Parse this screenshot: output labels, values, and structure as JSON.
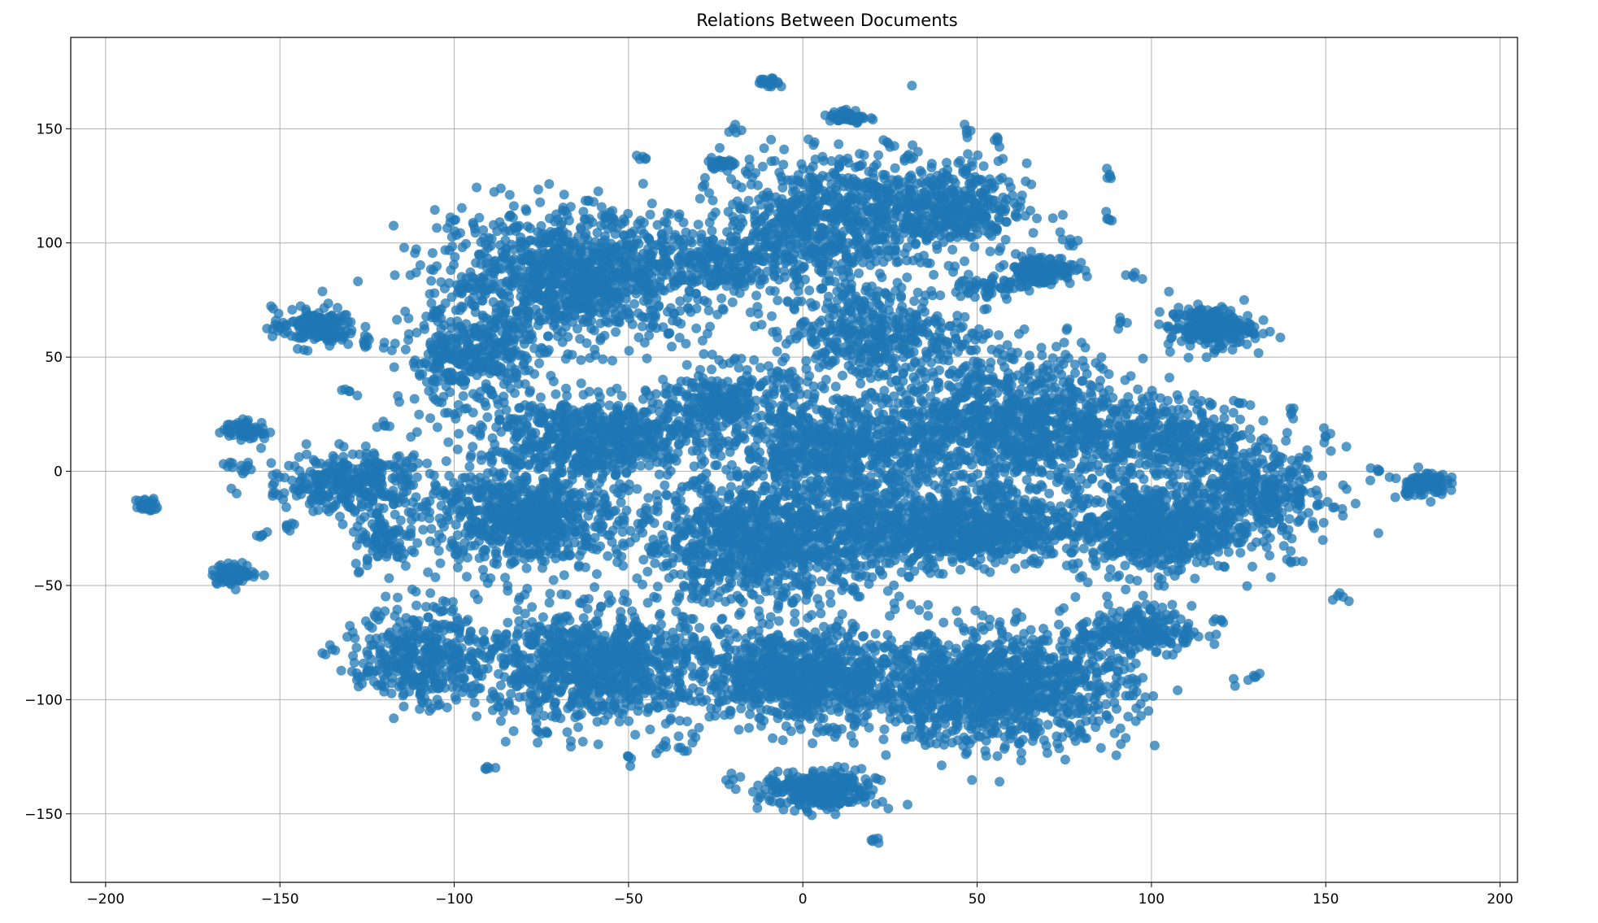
{
  "chart_data": {
    "type": "scatter",
    "title": "Relations Between Documents",
    "xlabel": "",
    "ylabel": "",
    "xlim": [
      -210,
      205
    ],
    "ylim": [
      -180,
      190
    ],
    "x_ticks": [
      -200,
      -150,
      -100,
      -50,
      0,
      50,
      100,
      150,
      200
    ],
    "y_ticks": [
      -150,
      -100,
      -50,
      0,
      50,
      100,
      150
    ],
    "x_tick_labels": [
      "−200",
      "−150",
      "−100",
      "−50",
      "0",
      "50",
      "100",
      "150",
      "200"
    ],
    "y_tick_labels": [
      "−150",
      "−100",
      "−50",
      "0",
      "50",
      "100",
      "150"
    ],
    "grid": true,
    "point_color": "#1f77b4",
    "point_alpha": 0.75,
    "series": [
      {
        "clusters": [
          {
            "cx": -65,
            "cy": 85,
            "rx": 35,
            "ry": 25,
            "n": 1100
          },
          {
            "cx": -95,
            "cy": 50,
            "rx": 18,
            "ry": 18,
            "n": 350
          },
          {
            "cx": -60,
            "cy": 15,
            "rx": 30,
            "ry": 15,
            "n": 650
          },
          {
            "cx": -22,
            "cy": 30,
            "rx": 18,
            "ry": 15,
            "n": 300
          },
          {
            "cx": 5,
            "cy": 110,
            "rx": 25,
            "ry": 25,
            "n": 650
          },
          {
            "cx": 40,
            "cy": 115,
            "rx": 22,
            "ry": 18,
            "n": 450
          },
          {
            "cx": 20,
            "cy": 60,
            "rx": 25,
            "ry": 20,
            "n": 420
          },
          {
            "cx": -25,
            "cy": 90,
            "rx": 18,
            "ry": 12,
            "n": 180
          },
          {
            "cx": 60,
            "cy": 20,
            "rx": 35,
            "ry": 28,
            "n": 1100
          },
          {
            "cx": 10,
            "cy": 10,
            "rx": 25,
            "ry": 20,
            "n": 600
          },
          {
            "cx": -10,
            "cy": -30,
            "rx": 35,
            "ry": 25,
            "n": 1100
          },
          {
            "cx": -80,
            "cy": -20,
            "rx": 25,
            "ry": 20,
            "n": 700
          },
          {
            "cx": -130,
            "cy": -5,
            "rx": 22,
            "ry": 12,
            "n": 320
          },
          {
            "cx": 45,
            "cy": -25,
            "rx": 30,
            "ry": 15,
            "n": 800
          },
          {
            "cx": 100,
            "cy": -25,
            "rx": 22,
            "ry": 18,
            "n": 650
          },
          {
            "cx": 105,
            "cy": 15,
            "rx": 20,
            "ry": 15,
            "n": 320
          },
          {
            "cx": 130,
            "cy": -10,
            "rx": 20,
            "ry": 18,
            "n": 380
          },
          {
            "cx": 0,
            "cy": -90,
            "rx": 25,
            "ry": 18,
            "n": 800
          },
          {
            "cx": 55,
            "cy": -95,
            "rx": 35,
            "ry": 22,
            "n": 1200
          },
          {
            "cx": -60,
            "cy": -85,
            "rx": 35,
            "ry": 22,
            "n": 1000
          },
          {
            "cx": -110,
            "cy": -80,
            "rx": 15,
            "ry": 20,
            "n": 350
          },
          {
            "cx": 5,
            "cy": -140,
            "rx": 15,
            "ry": 8,
            "n": 280
          },
          {
            "cx": 95,
            "cy": -70,
            "rx": 15,
            "ry": 10,
            "n": 220
          },
          {
            "cx": -120,
            "cy": -30,
            "rx": 8,
            "ry": 12,
            "n": 90
          },
          {
            "cx": 68,
            "cy": 88,
            "rx": 9,
            "ry": 6,
            "n": 170
          },
          {
            "cx": 117,
            "cy": 63,
            "rx": 11,
            "ry": 8,
            "n": 230
          },
          {
            "cx": -140,
            "cy": 63,
            "rx": 11,
            "ry": 8,
            "n": 150
          },
          {
            "cx": -160,
            "cy": 18,
            "rx": 6,
            "ry": 4,
            "n": 60
          },
          {
            "cx": -163,
            "cy": -45,
            "rx": 6,
            "ry": 4,
            "n": 80
          },
          {
            "cx": -188,
            "cy": -15,
            "rx": 3,
            "ry": 3,
            "n": 35
          },
          {
            "cx": 178,
            "cy": -5,
            "rx": 6,
            "ry": 5,
            "n": 80
          },
          {
            "cx": 13,
            "cy": 155,
            "rx": 5,
            "ry": 3,
            "n": 50
          },
          {
            "cx": -23,
            "cy": 135,
            "rx": 4,
            "ry": 2,
            "n": 35
          },
          {
            "cx": -10,
            "cy": 170,
            "rx": 3,
            "ry": 2,
            "n": 20
          },
          {
            "cx": 52,
            "cy": 80,
            "rx": 8,
            "ry": 6,
            "n": 50
          }
        ],
        "sparse": [
          [
            -100,
            110
          ],
          [
            -120,
            20
          ],
          [
            -90,
            -130
          ],
          [
            -40,
            -120
          ],
          [
            -50,
            -125
          ],
          [
            -75,
            -115
          ],
          [
            -135,
            -78
          ],
          [
            -125,
            -88
          ],
          [
            -100,
            25
          ],
          [
            130,
            -90
          ],
          [
            155,
            -55
          ],
          [
            165,
            0
          ],
          [
            173,
            -10
          ],
          [
            150,
            15
          ],
          [
            140,
            25
          ],
          [
            88,
            130
          ],
          [
            88,
            110
          ],
          [
            95,
            85
          ],
          [
            93,
            65
          ],
          [
            77,
            100
          ],
          [
            -130,
            35
          ],
          [
            -125,
            55
          ],
          [
            -148,
            -25
          ],
          [
            -155,
            -28
          ],
          [
            -35,
            -121
          ],
          [
            20,
            -162
          ],
          [
            -20,
            -135
          ],
          [
            -45,
            137
          ],
          [
            -20,
            150
          ],
          [
            47,
            148
          ],
          [
            55,
            145
          ],
          [
            25,
            142
          ],
          [
            -105,
            70
          ],
          [
            -140,
            -10
          ],
          [
            -160,
            0
          ],
          [
            -165,
            2
          ],
          [
            110,
            -75
          ],
          [
            120,
            -65
          ],
          [
            125,
            30
          ],
          [
            140,
            -40
          ],
          [
            30,
            138
          ],
          [
            -60,
            118
          ],
          [
            -55,
            110
          ]
        ]
      }
    ]
  }
}
